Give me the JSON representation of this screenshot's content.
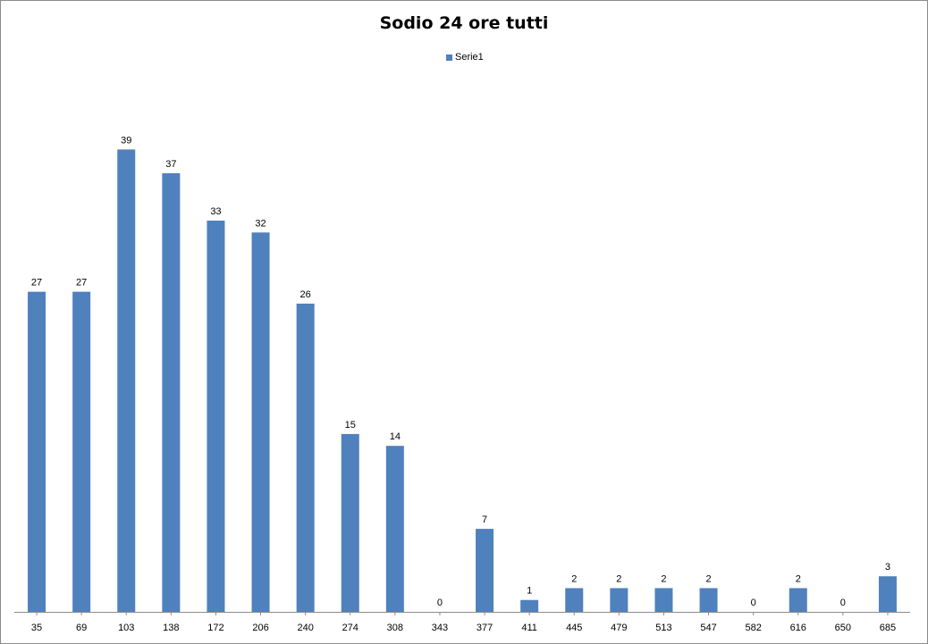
{
  "chart_data": {
    "type": "bar",
    "title": "Sodio 24 ore tutti",
    "categories": [
      "35",
      "69",
      "103",
      "138",
      "172",
      "206",
      "240",
      "274",
      "308",
      "343",
      "377",
      "411",
      "445",
      "479",
      "513",
      "547",
      "582",
      "616",
      "650",
      "685"
    ],
    "series": [
      {
        "name": "Serie1",
        "color": "#4f81bd",
        "values": [
          27,
          27,
          39,
          37,
          33,
          32,
          26,
          15,
          14,
          0,
          7,
          1,
          2,
          2,
          2,
          2,
          0,
          2,
          0,
          3
        ]
      }
    ],
    "ylim": [
      0,
      44
    ],
    "grid": false,
    "legend": "top-center",
    "data_labels": true
  }
}
